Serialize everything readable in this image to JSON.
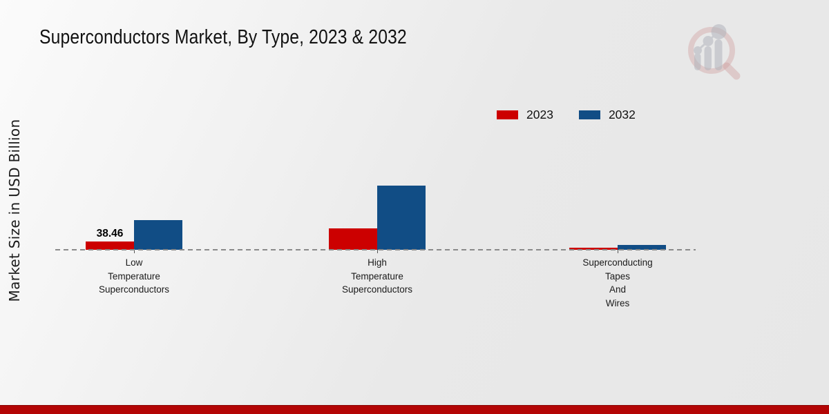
{
  "title": "Superconductors Market, By Type, 2023 & 2032",
  "ylabel": "Market Size in USD Billion",
  "colors": {
    "accent_red": "#cc0000",
    "accent_blue": "#114d85",
    "footer_stripe": "#b30505",
    "baseline_gray": "#8a8a8a",
    "background_gray": "#e8e8e8"
  },
  "logo": {
    "name": "market-research-magnifier-logo",
    "ring_color": "#cf9d9d",
    "bars_color": "#b4b7be"
  },
  "chart_data": {
    "type": "bar",
    "title": "Superconductors Market, By Type, 2023 & 2032",
    "xlabel": "",
    "ylabel": "Market Size in USD Billion",
    "ylim": [
      0,
      300
    ],
    "grid": false,
    "legend_position": "top-right",
    "categories": [
      "Low Temperature Superconductors",
      "High Temperature Superconductors",
      "Superconducting Tapes And Wires"
    ],
    "display_labels": [
      "Low\nTemperature\nSuperconductors",
      "High\nTemperature\nSuperconductors",
      "Superconducting\nTapes\nAnd\nWires"
    ],
    "series": [
      {
        "name": "2023",
        "color": "#cc0000",
        "values": [
          38.46,
          95,
          8
        ]
      },
      {
        "name": "2032",
        "color": "#114d85",
        "values": [
          135,
          289,
          23
        ]
      }
    ],
    "data_labels": [
      {
        "series": "2023",
        "category": "Low Temperature Superconductors",
        "text": "38.46"
      }
    ]
  }
}
